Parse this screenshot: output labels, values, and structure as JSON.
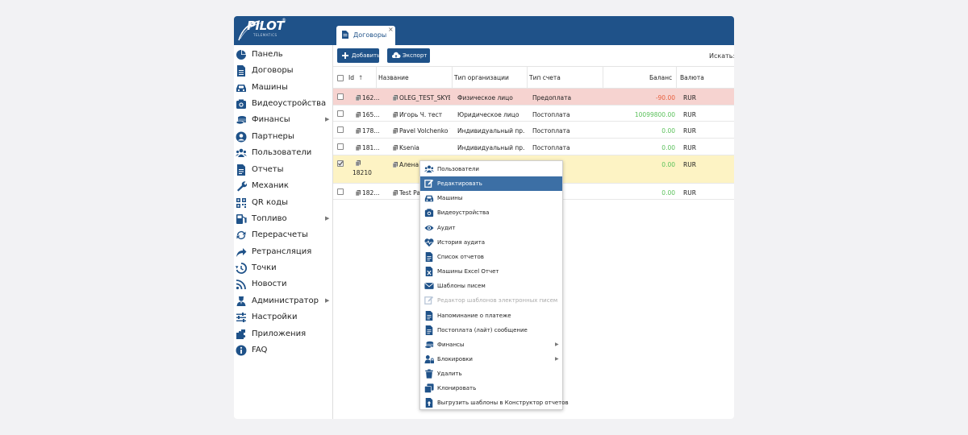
{
  "logo": {
    "text": "PILOT",
    "sub": "TELEMATICS",
    "reg": "®"
  },
  "tab": {
    "label": "Договоры",
    "close": "×"
  },
  "sidebar": {
    "items": [
      {
        "label": "Панель",
        "icon": "pie-chart-icon"
      },
      {
        "label": "Договоры",
        "icon": "document-icon"
      },
      {
        "label": "Машины",
        "icon": "car-icon"
      },
      {
        "label": "Видеоустройства",
        "icon": "camera-icon"
      },
      {
        "label": "Финансы",
        "icon": "coins-icon",
        "submenu": true
      },
      {
        "label": "Партнеры",
        "icon": "user-circle-icon"
      },
      {
        "label": "Пользователи",
        "icon": "users-icon"
      },
      {
        "label": "Отчеты",
        "icon": "file-icon"
      },
      {
        "label": "Механик",
        "icon": "wrench-icon"
      },
      {
        "label": "QR коды",
        "icon": "qr-code-icon"
      },
      {
        "label": "Топливо",
        "icon": "fuel-icon",
        "submenu": true
      },
      {
        "label": "Перерасчеты",
        "icon": "sync-icon"
      },
      {
        "label": "Ретрансляция",
        "icon": "share-arrow-icon"
      },
      {
        "label": "Точки",
        "icon": "history-icon"
      },
      {
        "label": "Новости",
        "icon": "rss-icon"
      },
      {
        "label": "Администратор",
        "icon": "admin-icon",
        "submenu": true
      },
      {
        "label": "Настройки",
        "icon": "sliders-icon"
      },
      {
        "label": "Приложения",
        "icon": "puzzle-icon"
      },
      {
        "label": "FAQ",
        "icon": "info-icon"
      }
    ]
  },
  "toolbar": {
    "add_label": "Добавить",
    "export_label": "Экспорт",
    "search_label": "Искать:"
  },
  "table": {
    "columns": [
      "Id",
      "Название",
      "Тип организации",
      "Тип счета",
      "Баланс",
      "Валюта"
    ],
    "sort_indicator": "↑",
    "rows": [
      {
        "id": "162...",
        "name": "OLEG_TEST_SKYEL",
        "org": "Физическое лицо",
        "account": "Предоплата",
        "balance": "-90.00",
        "currency": "RUR",
        "state": "negative"
      },
      {
        "id": "165...",
        "name": "Игорь Ч. тест",
        "org": "Юридическое лицо",
        "account": "Постоплата",
        "balance": "10099800.00",
        "currency": "RUR",
        "state": "normal"
      },
      {
        "id": "178...",
        "name": "Pavel Volchenko T...",
        "org": "Индивидуальный пр...",
        "account": "Постоплата",
        "balance": "0.00",
        "currency": "RUR",
        "state": "normal"
      },
      {
        "id": "181...",
        "name": "Ksenia",
        "org": "Индивидуальный пр...",
        "account": "Постоплата",
        "balance": "0.00",
        "currency": "RUR",
        "state": "normal"
      },
      {
        "id": "18210",
        "name": "Алена",
        "org": "",
        "account": "лата",
        "balance": "0.00",
        "currency": "RUR",
        "state": "selected"
      },
      {
        "id": "182...",
        "name": "Test Pa",
        "org": "",
        "account": "лата",
        "balance": "0.00",
        "currency": "RUR",
        "state": "normal"
      }
    ]
  },
  "context_menu": {
    "items": [
      {
        "label": "Пользователи",
        "icon": "users-icon"
      },
      {
        "label": "Редактировать",
        "icon": "edit-icon",
        "active": true
      },
      {
        "label": "Машины",
        "icon": "car-icon"
      },
      {
        "label": "Видеоустройства",
        "icon": "camera-icon"
      },
      {
        "label": "Аудит",
        "icon": "eye-icon"
      },
      {
        "label": "История аудита",
        "icon": "heartbeat-icon"
      },
      {
        "label": "Список отчетов",
        "icon": "file-icon"
      },
      {
        "label": "Машины Excel Отчет",
        "icon": "excel-file-icon"
      },
      {
        "label": "Шаблоны писем",
        "icon": "envelope-icon"
      },
      {
        "label": "Редактор шаблонов электронных писем",
        "icon": "edit-icon",
        "disabled": true
      },
      {
        "label": "Напоминание о платеже",
        "icon": "file-icon"
      },
      {
        "label": "Постоплата (лайт) сообщение",
        "icon": "file-icon"
      },
      {
        "label": "Финансы",
        "icon": "coins-icon",
        "submenu": true
      },
      {
        "label": "Блокировки",
        "icon": "user-lock-icon",
        "submenu": true
      },
      {
        "label": "Удалить",
        "icon": "trash-icon"
      },
      {
        "label": "Клонировать",
        "icon": "clone-icon"
      },
      {
        "label": "Выгрузить шаблоны в Конструктор отчетов",
        "icon": "upload-file-icon"
      }
    ]
  },
  "colors": {
    "brand": "#1f5289",
    "menu_active": "#3c6fa5",
    "row_negative": "#f6d3d0",
    "row_selected": "#fdf3c4",
    "balance_negative": "#e8603f",
    "balance_positive": "#5bc15b"
  }
}
